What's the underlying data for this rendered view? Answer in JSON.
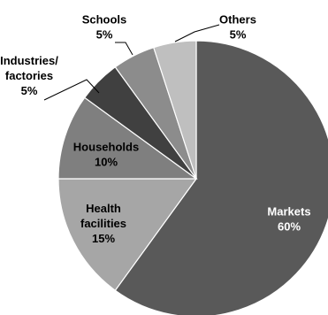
{
  "chart_data": {
    "type": "pie",
    "title": "",
    "start": "top",
    "direction": "clockwise",
    "slices": [
      {
        "label": "Markets",
        "value": 60,
        "value_label": "60%",
        "color": "#595959",
        "text_color": "#ffffff"
      },
      {
        "label": "Health facilities",
        "value": 15,
        "value_label": "15%",
        "color": "#a6a6a6",
        "text_color": "#000000"
      },
      {
        "label": "Households",
        "value": 10,
        "value_label": "10%",
        "color": "#7f7f7f",
        "text_color": "#000000"
      },
      {
        "label": "Industries/ factories",
        "value": 5,
        "value_label": "5%",
        "color": "#404040",
        "text_color": "#000000"
      },
      {
        "label": "Schools",
        "value": 5,
        "value_label": "5%",
        "color": "#8c8c8c",
        "text_color": "#000000"
      },
      {
        "label": "Others",
        "value": 5,
        "value_label": "5%",
        "color": "#bfbfbf",
        "text_color": "#000000"
      }
    ]
  }
}
